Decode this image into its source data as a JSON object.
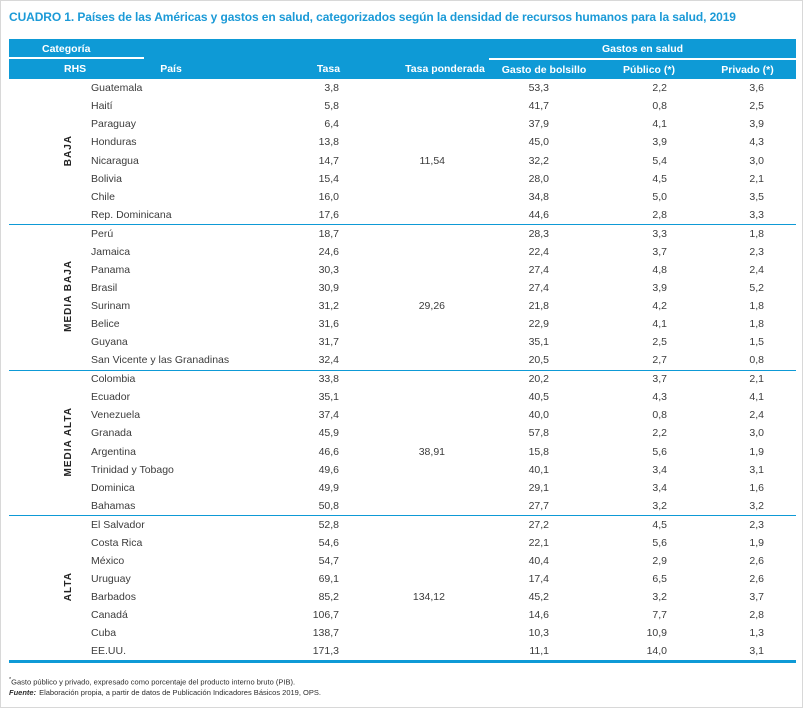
{
  "title": "CUADRO 1. Países de las Américas y gastos en salud, categorizados según la densidad de recursos humanos para la salud, 2019",
  "table": {
    "header": {
      "categoria": "Categoría",
      "rhs": "RHS",
      "pais": "País",
      "tasa": "Tasa",
      "tasa_ponderada": "Tasa ponderada",
      "gastos_en_salud": "Gastos en salud",
      "gasto_de_bolsillo": "Gasto de bolsillo",
      "publico": "Público (*)",
      "privado": "Privado (*)"
    },
    "sections": [
      {
        "category": "BAJA",
        "rows": [
          {
            "pais": "Guatemala",
            "tasa": "3,8",
            "ponderada": "",
            "bolsillo": "53,3",
            "publico": "2,2",
            "privado": "3,6"
          },
          {
            "pais": "Haití",
            "tasa": "5,8",
            "ponderada": "",
            "bolsillo": "41,7",
            "publico": "0,8",
            "privado": "2,5"
          },
          {
            "pais": "Paraguay",
            "tasa": "6,4",
            "ponderada": "",
            "bolsillo": "37,9",
            "publico": "4,1",
            "privado": "3,9"
          },
          {
            "pais": "Honduras",
            "tasa": "13,8",
            "ponderada": "",
            "bolsillo": "45,0",
            "publico": "3,9",
            "privado": "4,3"
          },
          {
            "pais": "Nicaragua",
            "tasa": "14,7",
            "ponderada": "11,54",
            "bolsillo": "32,2",
            "publico": "5,4",
            "privado": "3,0"
          },
          {
            "pais": "Bolivia",
            "tasa": "15,4",
            "ponderada": "",
            "bolsillo": "28,0",
            "publico": "4,5",
            "privado": "2,1"
          },
          {
            "pais": "Chile",
            "tasa": "16,0",
            "ponderada": "",
            "bolsillo": "34,8",
            "publico": "5,0",
            "privado": "3,5"
          },
          {
            "pais": "Rep. Dominicana",
            "tasa": "17,6",
            "ponderada": "",
            "bolsillo": "44,6",
            "publico": "2,8",
            "privado": "3,3"
          }
        ]
      },
      {
        "category": "MEDIA BAJA",
        "rows": [
          {
            "pais": "Perú",
            "tasa": "18,7",
            "ponderada": "",
            "bolsillo": "28,3",
            "publico": "3,3",
            "privado": "1,8"
          },
          {
            "pais": "Jamaica",
            "tasa": "24,6",
            "ponderada": "",
            "bolsillo": "22,4",
            "publico": "3,7",
            "privado": "2,3"
          },
          {
            "pais": "Panama",
            "tasa": "30,3",
            "ponderada": "",
            "bolsillo": "27,4",
            "publico": "4,8",
            "privado": "2,4"
          },
          {
            "pais": "Brasil",
            "tasa": "30,9",
            "ponderada": "",
            "bolsillo": "27,4",
            "publico": "3,9",
            "privado": "5,2"
          },
          {
            "pais": "Surinam",
            "tasa": "31,2",
            "ponderada": "29,26",
            "bolsillo": "21,8",
            "publico": "4,2",
            "privado": "1,8"
          },
          {
            "pais": "Belice",
            "tasa": "31,6",
            "ponderada": "",
            "bolsillo": "22,9",
            "publico": "4,1",
            "privado": "1,8"
          },
          {
            "pais": "Guyana",
            "tasa": "31,7",
            "ponderada": "",
            "bolsillo": "35,1",
            "publico": "2,5",
            "privado": "1,5"
          },
          {
            "pais": "San Vicente y las Granadinas",
            "tasa": "32,4",
            "ponderada": "",
            "bolsillo": "20,5",
            "publico": "2,7",
            "privado": "0,8"
          }
        ]
      },
      {
        "category": "MEDIA ALTA",
        "rows": [
          {
            "pais": "Colombia",
            "tasa": "33,8",
            "ponderada": "",
            "bolsillo": "20,2",
            "publico": "3,7",
            "privado": "2,1"
          },
          {
            "pais": "Ecuador",
            "tasa": "35,1",
            "ponderada": "",
            "bolsillo": "40,5",
            "publico": "4,3",
            "privado": "4,1"
          },
          {
            "pais": "Venezuela",
            "tasa": "37,4",
            "ponderada": "",
            "bolsillo": "40,0",
            "publico": "0,8",
            "privado": "2,4"
          },
          {
            "pais": "Granada",
            "tasa": "45,9",
            "ponderada": "",
            "bolsillo": "57,8",
            "publico": "2,2",
            "privado": "3,0"
          },
          {
            "pais": "Argentina",
            "tasa": "46,6",
            "ponderada": "38,91",
            "bolsillo": "15,8",
            "publico": "5,6",
            "privado": "1,9"
          },
          {
            "pais": "Trinidad y Tobago",
            "tasa": "49,6",
            "ponderada": "",
            "bolsillo": "40,1",
            "publico": "3,4",
            "privado": "3,1"
          },
          {
            "pais": "Dominica",
            "tasa": "49,9",
            "ponderada": "",
            "bolsillo": "29,1",
            "publico": "3,4",
            "privado": "1,6"
          },
          {
            "pais": "Bahamas",
            "tasa": "50,8",
            "ponderada": "",
            "bolsillo": "27,7",
            "publico": "3,2",
            "privado": "3,2"
          }
        ]
      },
      {
        "category": "ALTA",
        "rows": [
          {
            "pais": "El Salvador",
            "tasa": "52,8",
            "ponderada": "",
            "bolsillo": "27,2",
            "publico": "4,5",
            "privado": "2,3"
          },
          {
            "pais": "Costa Rica",
            "tasa": "54,6",
            "ponderada": "",
            "bolsillo": "22,1",
            "publico": "5,6",
            "privado": "1,9"
          },
          {
            "pais": "México",
            "tasa": "54,7",
            "ponderada": "",
            "bolsillo": "40,4",
            "publico": "2,9",
            "privado": "2,6"
          },
          {
            "pais": "Uruguay",
            "tasa": "69,1",
            "ponderada": "",
            "bolsillo": "17,4",
            "publico": "6,5",
            "privado": "2,6"
          },
          {
            "pais": "Barbados",
            "tasa": "85,2",
            "ponderada": "134,12",
            "bolsillo": "45,2",
            "publico": "3,2",
            "privado": "3,7"
          },
          {
            "pais": "Canadá",
            "tasa": "106,7",
            "ponderada": "",
            "bolsillo": "14,6",
            "publico": "7,7",
            "privado": "2,8"
          },
          {
            "pais": "Cuba",
            "tasa": "138,7",
            "ponderada": "",
            "bolsillo": "10,3",
            "publico": "10,9",
            "privado": "1,3"
          },
          {
            "pais": "EE.UU.",
            "tasa": "171,3",
            "ponderada": "",
            "bolsillo": "11,1",
            "publico": "14,0",
            "privado": "3,1"
          }
        ]
      }
    ]
  },
  "footnotes": {
    "note_marker": "*",
    "note_text": "Gasto público y privado, expresado como porcentaje del producto interno bruto (PIB).",
    "source_label": "Fuente:",
    "source_text": "Elaboración propia, a partir de datos de Publicación Indicadores Básicos 2019, OPS."
  },
  "colors": {
    "header_blue": "#0e9ad6",
    "title_blue": "#1b9ad7",
    "rule_blue": "#0e9ad6",
    "body_text": "#3c3c3c",
    "frame_gray": "#d8d8d8"
  }
}
